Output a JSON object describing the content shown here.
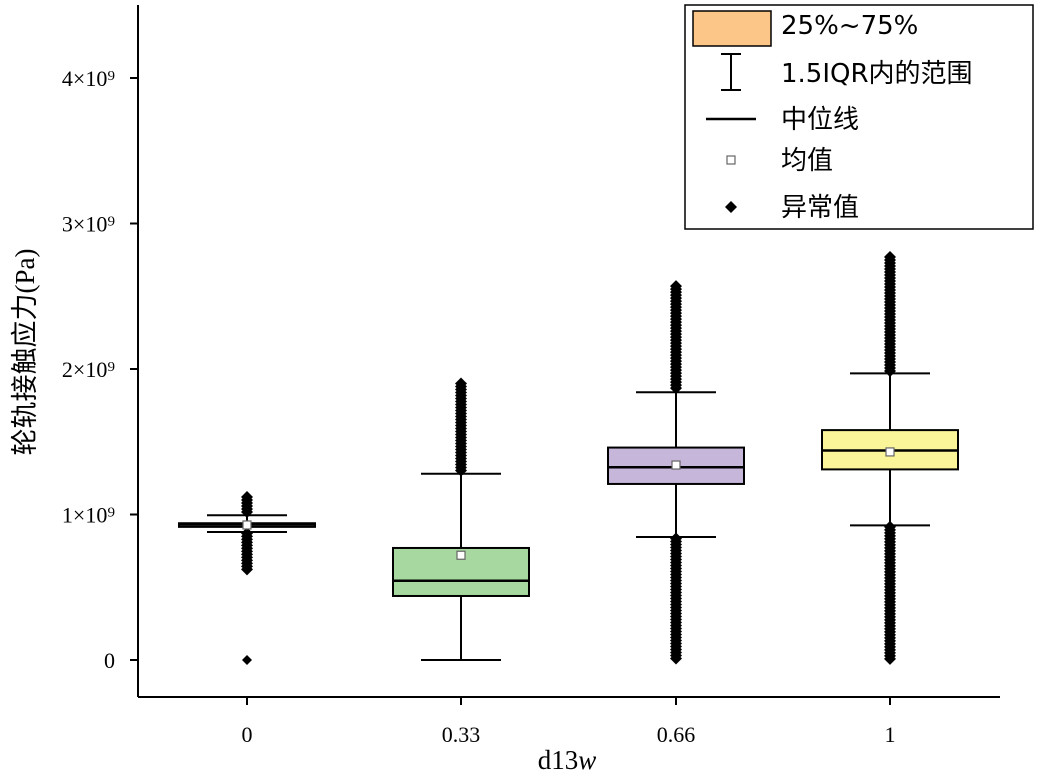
{
  "chart_data": {
    "type": "box",
    "xlabel": "d13",
    "xlabel_italic_suffix": "w",
    "ylabel": "轮轨接触应力(Pa)",
    "ylim": [
      -230000000,
      4500000000
    ],
    "y_ticks": [
      {
        "value": 0,
        "label": "0"
      },
      {
        "value": 1000000000,
        "label": "1×10⁹"
      },
      {
        "value": 2000000000,
        "label": "2×10⁹"
      },
      {
        "value": 3000000000,
        "label": "3×10⁹"
      },
      {
        "value": 4000000000,
        "label": "4×10⁹"
      }
    ],
    "categories": [
      "0",
      "0.33",
      "0.66",
      "1"
    ],
    "boxes": [
      {
        "category": "0",
        "color": "#f2f2f2",
        "q1": 915000000,
        "median": 930000000,
        "q3": 940000000,
        "mean": 928000000,
        "whisker_low": 880000000,
        "whisker_high": 995000000,
        "outliers_low_range": [
          620000000,
          870000000
        ],
        "outliers_high_range": [
          1000000000,
          1120000000
        ],
        "extra_outliers": [
          0
        ]
      },
      {
        "category": "0.33",
        "color": "#a6d89f",
        "q1": 440000000,
        "median": 545000000,
        "q3": 770000000,
        "mean": 720000000,
        "whisker_low": 0,
        "whisker_high": 1280000000,
        "outliers_low_range": null,
        "outliers_high_range": [
          1290000000,
          1900000000
        ],
        "extra_outliers": []
      },
      {
        "category": "0.66",
        "color": "#c6b6da",
        "q1": 1210000000,
        "median": 1325000000,
        "q3": 1460000000,
        "mean": 1340000000,
        "whisker_low": 845000000,
        "whisker_high": 1840000000,
        "outliers_low_range": [
          0,
          835000000
        ],
        "outliers_high_range": [
          1850000000,
          2570000000
        ],
        "extra_outliers": []
      },
      {
        "category": "1",
        "color": "#fbf59a",
        "q1": 1310000000,
        "median": 1440000000,
        "q3": 1580000000,
        "mean": 1430000000,
        "whisker_low": 925000000,
        "whisker_high": 1970000000,
        "outliers_low_range": [
          0,
          915000000
        ],
        "outliers_high_range": [
          1980000000,
          2770000000
        ],
        "extra_outliers": []
      }
    ],
    "legend": {
      "position": "top-right",
      "items": [
        {
          "type": "box",
          "color": "#fcc688",
          "label": "25%~75%"
        },
        {
          "type": "whisker",
          "label": "1.5IQR内的范围"
        },
        {
          "type": "median",
          "label": "中位线"
        },
        {
          "type": "mean",
          "label": "均值"
        },
        {
          "type": "outlier",
          "label": "异常值"
        }
      ]
    }
  }
}
